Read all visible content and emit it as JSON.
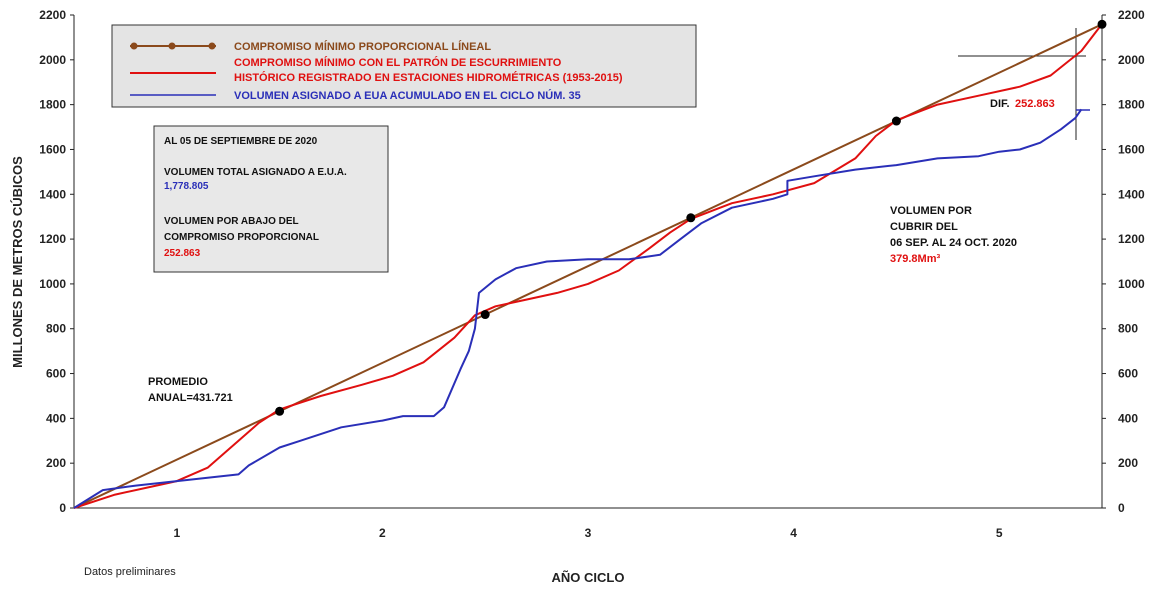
{
  "colors": {
    "brown": "#8b4a1c",
    "red": "#e01010",
    "blue": "#2a2fb8",
    "box_fill": "#e4e4e4",
    "info_fill": "#e8e8e8",
    "axis": "#222222"
  },
  "chart_data": {
    "type": "line",
    "xlabel": "AÑO CICLO",
    "ylabel": "MILLONES DE METROS CÚBICOS",
    "xlim": [
      0.5,
      5.5
    ],
    "ylim": [
      0,
      2200
    ],
    "x_ticks": [
      1,
      2,
      3,
      4,
      5
    ],
    "y_ticks": [
      0,
      200,
      400,
      600,
      800,
      1000,
      1200,
      1400,
      1600,
      1800,
      2000,
      2200
    ],
    "grid": false,
    "legend": {
      "placement": "top-left",
      "entries": [
        "COMPROMISO MÍNIMO PROPORCIONAL LÍNEAL",
        "COMPROMISO MÍNIMO CON EL PATRÓN DE ESCURRIMIENTO",
        "HISTÓRICO REGISTRADO EN ESTACIONES HIDROMÉTRICAS (1953-2015)",
        "VOLUMEN ASIGNADO A EUA ACUMULADO EN EL CICLO NÚM. 35"
      ]
    },
    "series": [
      {
        "name": "COMPROMISO MÍNIMO PROPORCIONAL LÍNEAL",
        "color": "#8b4a1c",
        "x": [
          0.5,
          5.5
        ],
        "y": [
          0,
          2158.6
        ],
        "markers": {
          "x": [
            1.5,
            2.5,
            3.5,
            4.5,
            5.5
          ],
          "y": [
            431.7,
            863.4,
            1295.2,
            1726.9,
            2158.6
          ]
        }
      },
      {
        "name": "COMPROMISO MÍNIMO CON EL PATRÓN DE ESCURRIMIENTO HISTÓRICO REGISTRADO EN ESTACIONES HIDROMÉTRICAS (1953-2015)",
        "color": "#e01010",
        "x": [
          0.5,
          0.7,
          0.9,
          1.0,
          1.15,
          1.3,
          1.4,
          1.5,
          1.7,
          1.9,
          2.05,
          2.2,
          2.35,
          2.45,
          2.55,
          2.7,
          2.85,
          3.0,
          3.15,
          3.3,
          3.4,
          3.5,
          3.7,
          3.9,
          4.1,
          4.3,
          4.4,
          4.5,
          4.7,
          4.9,
          5.1,
          5.25,
          5.4,
          5.5
        ],
        "y": [
          0,
          60,
          100,
          120,
          180,
          300,
          380,
          440,
          500,
          550,
          590,
          650,
          760,
          860,
          900,
          930,
          960,
          1000,
          1060,
          1160,
          1230,
          1290,
          1360,
          1400,
          1450,
          1560,
          1660,
          1730,
          1800,
          1840,
          1880,
          1930,
          2040,
          2160
        ]
      },
      {
        "name": "VOLUMEN ASIGNADO A EUA ACUMULADO EN EL CICLO NÚM. 35",
        "color": "#2a2fb8",
        "x": [
          0.5,
          0.64,
          0.8,
          1.0,
          1.2,
          1.3,
          1.35,
          1.5,
          1.6,
          1.8,
          2.0,
          2.1,
          2.25,
          2.3,
          2.38,
          2.42,
          2.45,
          2.47,
          2.55,
          2.65,
          2.8,
          3.0,
          3.2,
          3.35,
          3.45,
          3.55,
          3.7,
          3.9,
          3.97,
          3.97,
          4.1,
          4.3,
          4.5,
          4.7,
          4.9,
          5.0,
          5.1,
          5.2,
          5.3,
          5.37,
          5.4
        ],
        "y": [
          0,
          80,
          100,
          120,
          140,
          150,
          190,
          270,
          300,
          360,
          390,
          410,
          410,
          450,
          620,
          700,
          800,
          960,
          1020,
          1070,
          1100,
          1110,
          1110,
          1130,
          1200,
          1270,
          1340,
          1380,
          1400,
          1460,
          1480,
          1510,
          1530,
          1560,
          1570,
          1590,
          1600,
          1630,
          1690,
          1740,
          1779
        ]
      }
    ],
    "annotations": {
      "average_label": "PROMEDIO",
      "average_value": "ANUAL=431.721",
      "dif_label": "DIF.",
      "dif_value": "252.863",
      "remaining_line1": "VOLUMEN POR",
      "remaining_line2": "CUBRIR DEL",
      "remaining_line3": "06 SEP. AL 24 OCT. 2020",
      "remaining_value": "379.8Mm³"
    },
    "info_box": {
      "date_line": "AL 05 DE SEPTIEMBRE DE 2020",
      "total_label": "VOLUMEN TOTAL ASIGNADO A E.U.A.",
      "total_value": "1,778.805",
      "below_label_1": "VOLUMEN POR ABAJO DEL",
      "below_label_2": "COMPROMISO PROPORCIONAL",
      "below_value": "252.863"
    },
    "footnote": "Datos preliminares"
  }
}
